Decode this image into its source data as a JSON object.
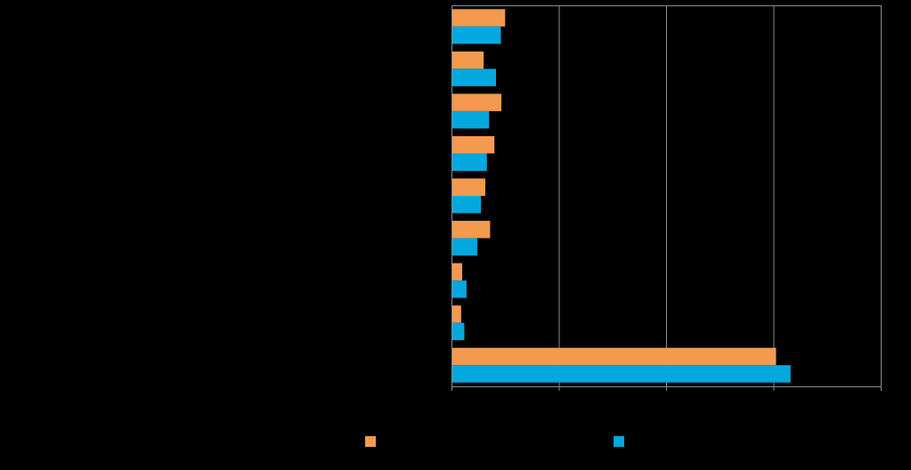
{
  "chart_data": {
    "type": "bar",
    "orientation": "horizontal",
    "categories": [
      "",
      "",
      "",
      "",
      "",
      "",
      "",
      "",
      ""
    ],
    "series": [
      {
        "color": "#F39A4E",
        "values": [
          10,
          6,
          9.3,
          8,
          6.3,
          7.2,
          2,
          1.8,
          60.5
        ]
      },
      {
        "color": "#02A8DE",
        "values": [
          9.2,
          8.3,
          7,
          6.6,
          5.5,
          4.8,
          2.8,
          2.4,
          63.2
        ]
      }
    ],
    "xlim": [
      0,
      80
    ],
    "xticks": [
      0,
      20,
      40,
      60,
      80
    ],
    "grid": true,
    "legend_position": "bottom",
    "background": "#000000",
    "axis_color": "#8C8C8C"
  }
}
